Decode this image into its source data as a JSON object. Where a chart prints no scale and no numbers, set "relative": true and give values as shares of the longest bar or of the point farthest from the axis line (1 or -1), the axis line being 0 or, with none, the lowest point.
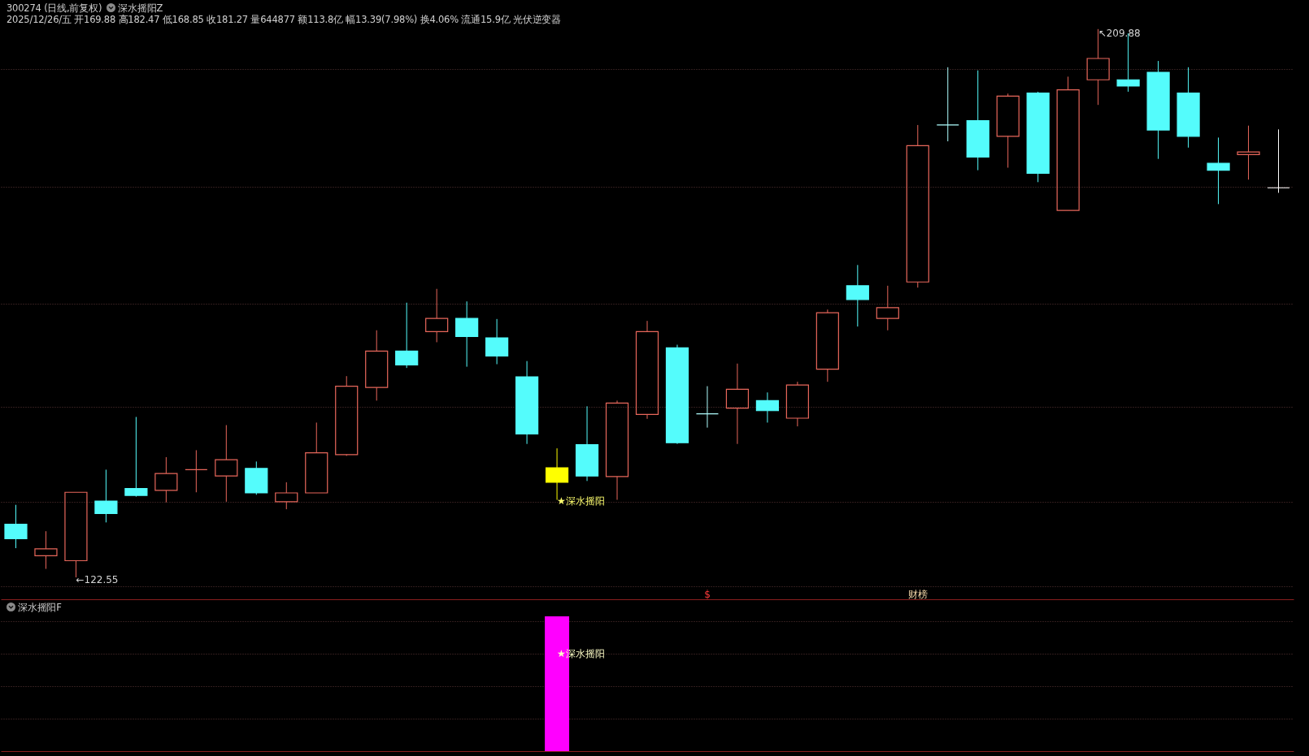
{
  "chart_data": [
    {
      "type": "candlestick",
      "title": "300274 (日线,前复权)",
      "subtitle": "2025/12/26/五 开169.88 高182.47 低168.85 收181.27 量644877 额113.8亿 幅13.39(7.98%) 换4.06% 流通15.9亿 光伏逆变器",
      "categories": [
        null,
        null,
        null,
        null,
        null,
        null,
        null,
        null,
        null,
        null,
        null,
        null,
        null,
        null,
        null,
        null,
        null,
        null,
        null,
        null,
        null,
        null,
        null,
        null,
        null,
        null,
        null,
        null,
        null,
        null,
        null,
        null,
        null,
        null,
        null,
        null,
        null,
        null,
        null,
        null,
        null,
        null,
        null
      ],
      "ohlc": [
        [
          131.0,
          134.1,
          127.2,
          128.7
        ],
        [
          126.0,
          129.9,
          123.9,
          127.1
        ],
        [
          125.2,
          136.1,
          122.55,
          136.1
        ],
        [
          134.7,
          139.7,
          131.3,
          132.7
        ],
        [
          136.7,
          148.1,
          135.4,
          135.6
        ],
        [
          136.4,
          141.7,
          134.5,
          139.1
        ],
        [
          139.7,
          142.8,
          136.1,
          139.7
        ],
        [
          138.7,
          146.8,
          134.6,
          141.3
        ],
        [
          139.9,
          141.0,
          135.7,
          136.0
        ],
        [
          134.6,
          137.7,
          133.4,
          136.0
        ],
        [
          136.0,
          147.2,
          136.0,
          142.4
        ],
        [
          142.1,
          154.6,
          141.9,
          153.0
        ],
        [
          152.8,
          161.9,
          150.7,
          158.6
        ],
        [
          158.6,
          166.3,
          155.9,
          156.4
        ],
        [
          161.7,
          168.5,
          160.0,
          163.8
        ],
        [
          163.8,
          166.5,
          156.1,
          160.9
        ],
        [
          160.7,
          163.7,
          156.5,
          157.8
        ],
        [
          154.5,
          157.0,
          143.8,
          145.4
        ],
        [
          140.0,
          143.1,
          134.9,
          137.7
        ],
        [
          143.7,
          149.8,
          137.9,
          138.7
        ],
        [
          138.6,
          150.7,
          134.9,
          150.3
        ],
        [
          148.5,
          163.4,
          147.8,
          161.7
        ],
        [
          159.1,
          159.6,
          143.8,
          144.0
        ],
        [
          148.6,
          153.0,
          146.4,
          148.6
        ],
        [
          149.5,
          156.6,
          143.8,
          152.5
        ],
        [
          150.7,
          152.0,
          147.2,
          149.1
        ],
        [
          147.9,
          153.7,
          146.6,
          153.2
        ],
        [
          155.7,
          165.2,
          153.7,
          164.7
        ],
        [
          169.0,
          172.3,
          162.5,
          166.8
        ],
        [
          163.8,
          169.0,
          161.9,
          165.5
        ],
        [
          169.6,
          194.6,
          168.7,
          191.3
        ],
        [
          194.6,
          203.8,
          192.0,
          194.6
        ],
        [
          195.3,
          203.3,
          187.4,
          189.5
        ],
        [
          192.8,
          199.6,
          187.8,
          199.2
        ],
        [
          199.7,
          199.9,
          185.5,
          186.9
        ],
        [
          181.0,
          202.3,
          181.0,
          200.2
        ],
        [
          201.8,
          209.88,
          197.8,
          205.2
        ],
        [
          201.8,
          209.2,
          199.9,
          200.8
        ],
        [
          203.0,
          204.8,
          189.2,
          193.8
        ],
        [
          199.7,
          203.8,
          191.0,
          192.8
        ],
        [
          188.5,
          192.6,
          182.0,
          187.4
        ],
        [
          189.9,
          194.5,
          185.9,
          190.3
        ],
        [
          184.6,
          193.9,
          183.8,
          184.6
        ]
      ],
      "colors": [
        "#54fcfc",
        "#e8675b",
        "#e8675b",
        "#54fcfc",
        "#54fcfc",
        "#e8675b",
        "#e8675b",
        "#e8675b",
        "#54fcfc",
        "#e8675b",
        "#e8675b",
        "#e8675b",
        "#e8675b",
        "#54fcfc",
        "#e8675b",
        "#54fcfc",
        "#54fcfc",
        "#54fcfc",
        "#ffff00",
        "#54fcfc",
        "#e8675b",
        "#e8675b",
        "#54fcfc",
        "#b0ffff",
        "#e8675b",
        "#54fcfc",
        "#e8675b",
        "#e8675b",
        "#54fcfc",
        "#e8675b",
        "#e8675b",
        "#b0ffff",
        "#54fcfc",
        "#e8675b",
        "#54fcfc",
        "#e8675b",
        "#e8675b",
        "#54fcfc",
        "#54fcfc",
        "#54fcfc",
        "#54fcfc",
        "#e8675b",
        "#ffffff"
      ],
      "yticks": [
        {
          "value": 121.1,
          "label": null
        },
        {
          "value": 134.6,
          "label": null
        },
        {
          "value": 149.7,
          "label": null
        },
        {
          "value": 166.2,
          "label": null
        },
        {
          "value": 184.7,
          "label": null
        },
        {
          "value": 203.5,
          "label": null
        }
      ],
      "grid": "y",
      "tick_labels": false,
      "annotations": [
        "深水摇阳Z",
        "↖209.88",
        "←122.55",
        "★深水摇阳",
        "$",
        "财榜"
      ]
    },
    {
      "type": "bar",
      "title": "深水摇阳F",
      "categories": [
        null,
        null,
        null,
        null,
        null,
        null,
        null,
        null,
        null,
        null,
        null,
        null,
        null,
        null,
        null,
        null,
        null,
        null,
        null,
        null,
        null,
        null,
        null,
        null,
        null,
        null,
        null,
        null,
        null,
        null,
        null,
        null,
        null,
        null,
        null,
        null,
        null,
        null,
        null,
        null,
        null,
        null,
        null
      ],
      "values": [
        null,
        null,
        null,
        null,
        null,
        null,
        null,
        null,
        null,
        null,
        null,
        null,
        null,
        null,
        null,
        null,
        null,
        null,
        1,
        null,
        null,
        null,
        null,
        null,
        null,
        null,
        null,
        null,
        null,
        null,
        null,
        null,
        null,
        null,
        null,
        null,
        null,
        null,
        null,
        null,
        null,
        null,
        null
      ],
      "color": "#ff00ff",
      "relative": true,
      "grid": "y",
      "tick_labels": false,
      "annotations": [
        "★深水摇阳"
      ]
    }
  ]
}
